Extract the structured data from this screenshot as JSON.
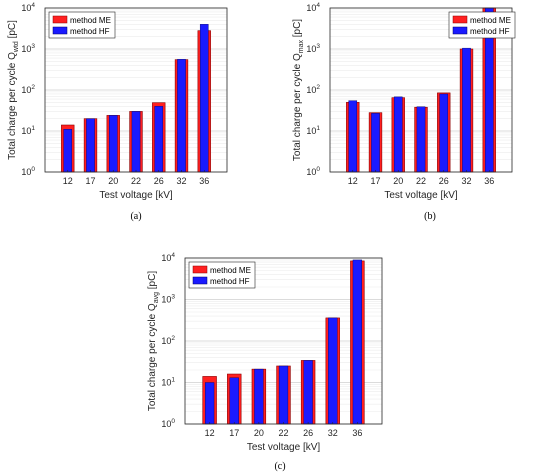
{
  "legend_labels": [
    "method ME",
    "method HF"
  ],
  "colors": {
    "me": "#ff2020",
    "hf": "#1a1aff",
    "outline": "#8b0000"
  },
  "chart_data": [
    {
      "type": "bar",
      "panel_label": "(a)",
      "categories": [
        "12",
        "17",
        "20",
        "22",
        "26",
        "32",
        "36"
      ],
      "series": [
        {
          "name": "method ME",
          "values": [
            14,
            20,
            24,
            30,
            49,
            550,
            2800
          ]
        },
        {
          "name": "method HF",
          "values": [
            11,
            20,
            24,
            30,
            40,
            560,
            4000
          ]
        }
      ],
      "ylabel_main": "Total charge per cycle Q",
      "ylabel_sub": "wtd",
      "ylabel_unit": " [pC]",
      "xlabel": "Test voltage [kV]",
      "yscale": "log",
      "ylim": [
        1,
        10000
      ],
      "yticks": [
        "10",
        "10",
        "10",
        "10",
        "10"
      ],
      "ytick_exponents": [
        "0",
        "1",
        "2",
        "3",
        "4"
      ],
      "grid": true,
      "legend_position": "top-left"
    },
    {
      "type": "bar",
      "panel_label": "(b)",
      "categories": [
        "12",
        "17",
        "20",
        "22",
        "26",
        "32",
        "36"
      ],
      "series": [
        {
          "name": "method ME",
          "values": [
            50,
            28,
            65,
            38,
            85,
            1000,
            10000
          ]
        },
        {
          "name": "method HF",
          "values": [
            55,
            27,
            68,
            39,
            80,
            1050,
            10000
          ]
        }
      ],
      "ylabel_main": "Total charge per cycle Q",
      "ylabel_sub": "max",
      "ylabel_unit": " [pC]",
      "xlabel": "Test voltage [kV]",
      "yscale": "log",
      "ylim": [
        1,
        10000
      ],
      "yticks": [
        "10",
        "10",
        "10",
        "10",
        "10"
      ],
      "ytick_exponents": [
        "0",
        "1",
        "2",
        "3",
        "4"
      ],
      "grid": true,
      "legend_position": "top-right"
    },
    {
      "type": "bar",
      "panel_label": "(c)",
      "categories": [
        "12",
        "17",
        "20",
        "22",
        "26",
        "32",
        "36"
      ],
      "series": [
        {
          "name": "method ME",
          "values": [
            14,
            16,
            21,
            25,
            34,
            360,
            8500
          ]
        },
        {
          "name": "method HF",
          "values": [
            10,
            13,
            21,
            25,
            34,
            360,
            9000
          ]
        }
      ],
      "ylabel_main": "Total charge per cycle Q",
      "ylabel_sub": "avg",
      "ylabel_unit": " [pC]",
      "xlabel": "Test voltage [kV]",
      "yscale": "log",
      "ylim": [
        1,
        10000
      ],
      "yticks": [
        "10",
        "10",
        "10",
        "10",
        "10"
      ],
      "ytick_exponents": [
        "0",
        "1",
        "2",
        "3",
        "4"
      ],
      "grid": true,
      "legend_position": "top-left"
    }
  ]
}
